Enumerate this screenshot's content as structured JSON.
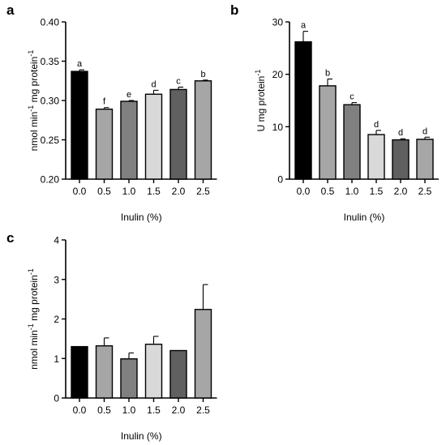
{
  "chart_data": [
    {
      "panel": "a",
      "type": "bar",
      "categories": [
        "0.0",
        "0.5",
        "1.0",
        "1.5",
        "2.0",
        "2.5"
      ],
      "values": [
        0.337,
        0.289,
        0.299,
        0.308,
        0.314,
        0.325
      ],
      "errors": [
        0.002,
        0.002,
        0.001,
        0.005,
        0.003,
        0.001
      ],
      "significance": [
        "a",
        "f",
        "e",
        "d",
        "c",
        "b"
      ],
      "bar_colors": [
        "#000000",
        "#a6a6a6",
        "#808080",
        "#d9d9d9",
        "#606060",
        "#a6a6a6"
      ],
      "xlabel": "Inulin (%)",
      "ylabel": {
        "prefix": "nmol min",
        "sup1": "-1",
        "mid": " mg protein",
        "sup2": "-1"
      },
      "ylim": [
        0.2,
        0.4
      ],
      "yticks": [
        "0.20",
        "0.25",
        "0.30",
        "0.35",
        "0.40"
      ]
    },
    {
      "panel": "b",
      "type": "bar",
      "categories": [
        "0.0",
        "0.5",
        "1.0",
        "1.5",
        "2.0",
        "2.5"
      ],
      "values": [
        26.2,
        17.8,
        14.2,
        8.5,
        7.5,
        7.6
      ],
      "errors": [
        2.0,
        1.3,
        0.4,
        0.8,
        0.2,
        0.4
      ],
      "significance": [
        "a",
        "b",
        "c",
        "d",
        "d",
        "d"
      ],
      "bar_colors": [
        "#000000",
        "#a6a6a6",
        "#808080",
        "#d9d9d9",
        "#606060",
        "#a6a6a6"
      ],
      "xlabel": "Inulin (%)",
      "ylabel": {
        "prefix": "U mg protein",
        "sup1": "-1",
        "mid": "",
        "sup2": ""
      },
      "ylim": [
        0,
        30
      ],
      "yticks": [
        "0",
        "10",
        "20",
        "30"
      ]
    },
    {
      "panel": "c",
      "type": "bar",
      "categories": [
        "0.0",
        "0.5",
        "1.0",
        "1.5",
        "2.0",
        "2.5"
      ],
      "values": [
        1.3,
        1.32,
        0.99,
        1.36,
        1.2,
        2.24
      ],
      "errors": [
        0.0,
        0.2,
        0.15,
        0.2,
        0.0,
        0.63
      ],
      "significance": [
        "",
        "",
        "",
        "",
        "",
        ""
      ],
      "bar_colors": [
        "#000000",
        "#a6a6a6",
        "#808080",
        "#d9d9d9",
        "#606060",
        "#a6a6a6"
      ],
      "xlabel": "Inulin (%)",
      "ylabel": {
        "prefix": "nmol min",
        "sup1": "-1",
        "mid": " mg protein",
        "sup2": "-1"
      },
      "ylim": [
        0,
        4
      ],
      "yticks": [
        "0",
        "1",
        "2",
        "3",
        "4"
      ]
    }
  ]
}
